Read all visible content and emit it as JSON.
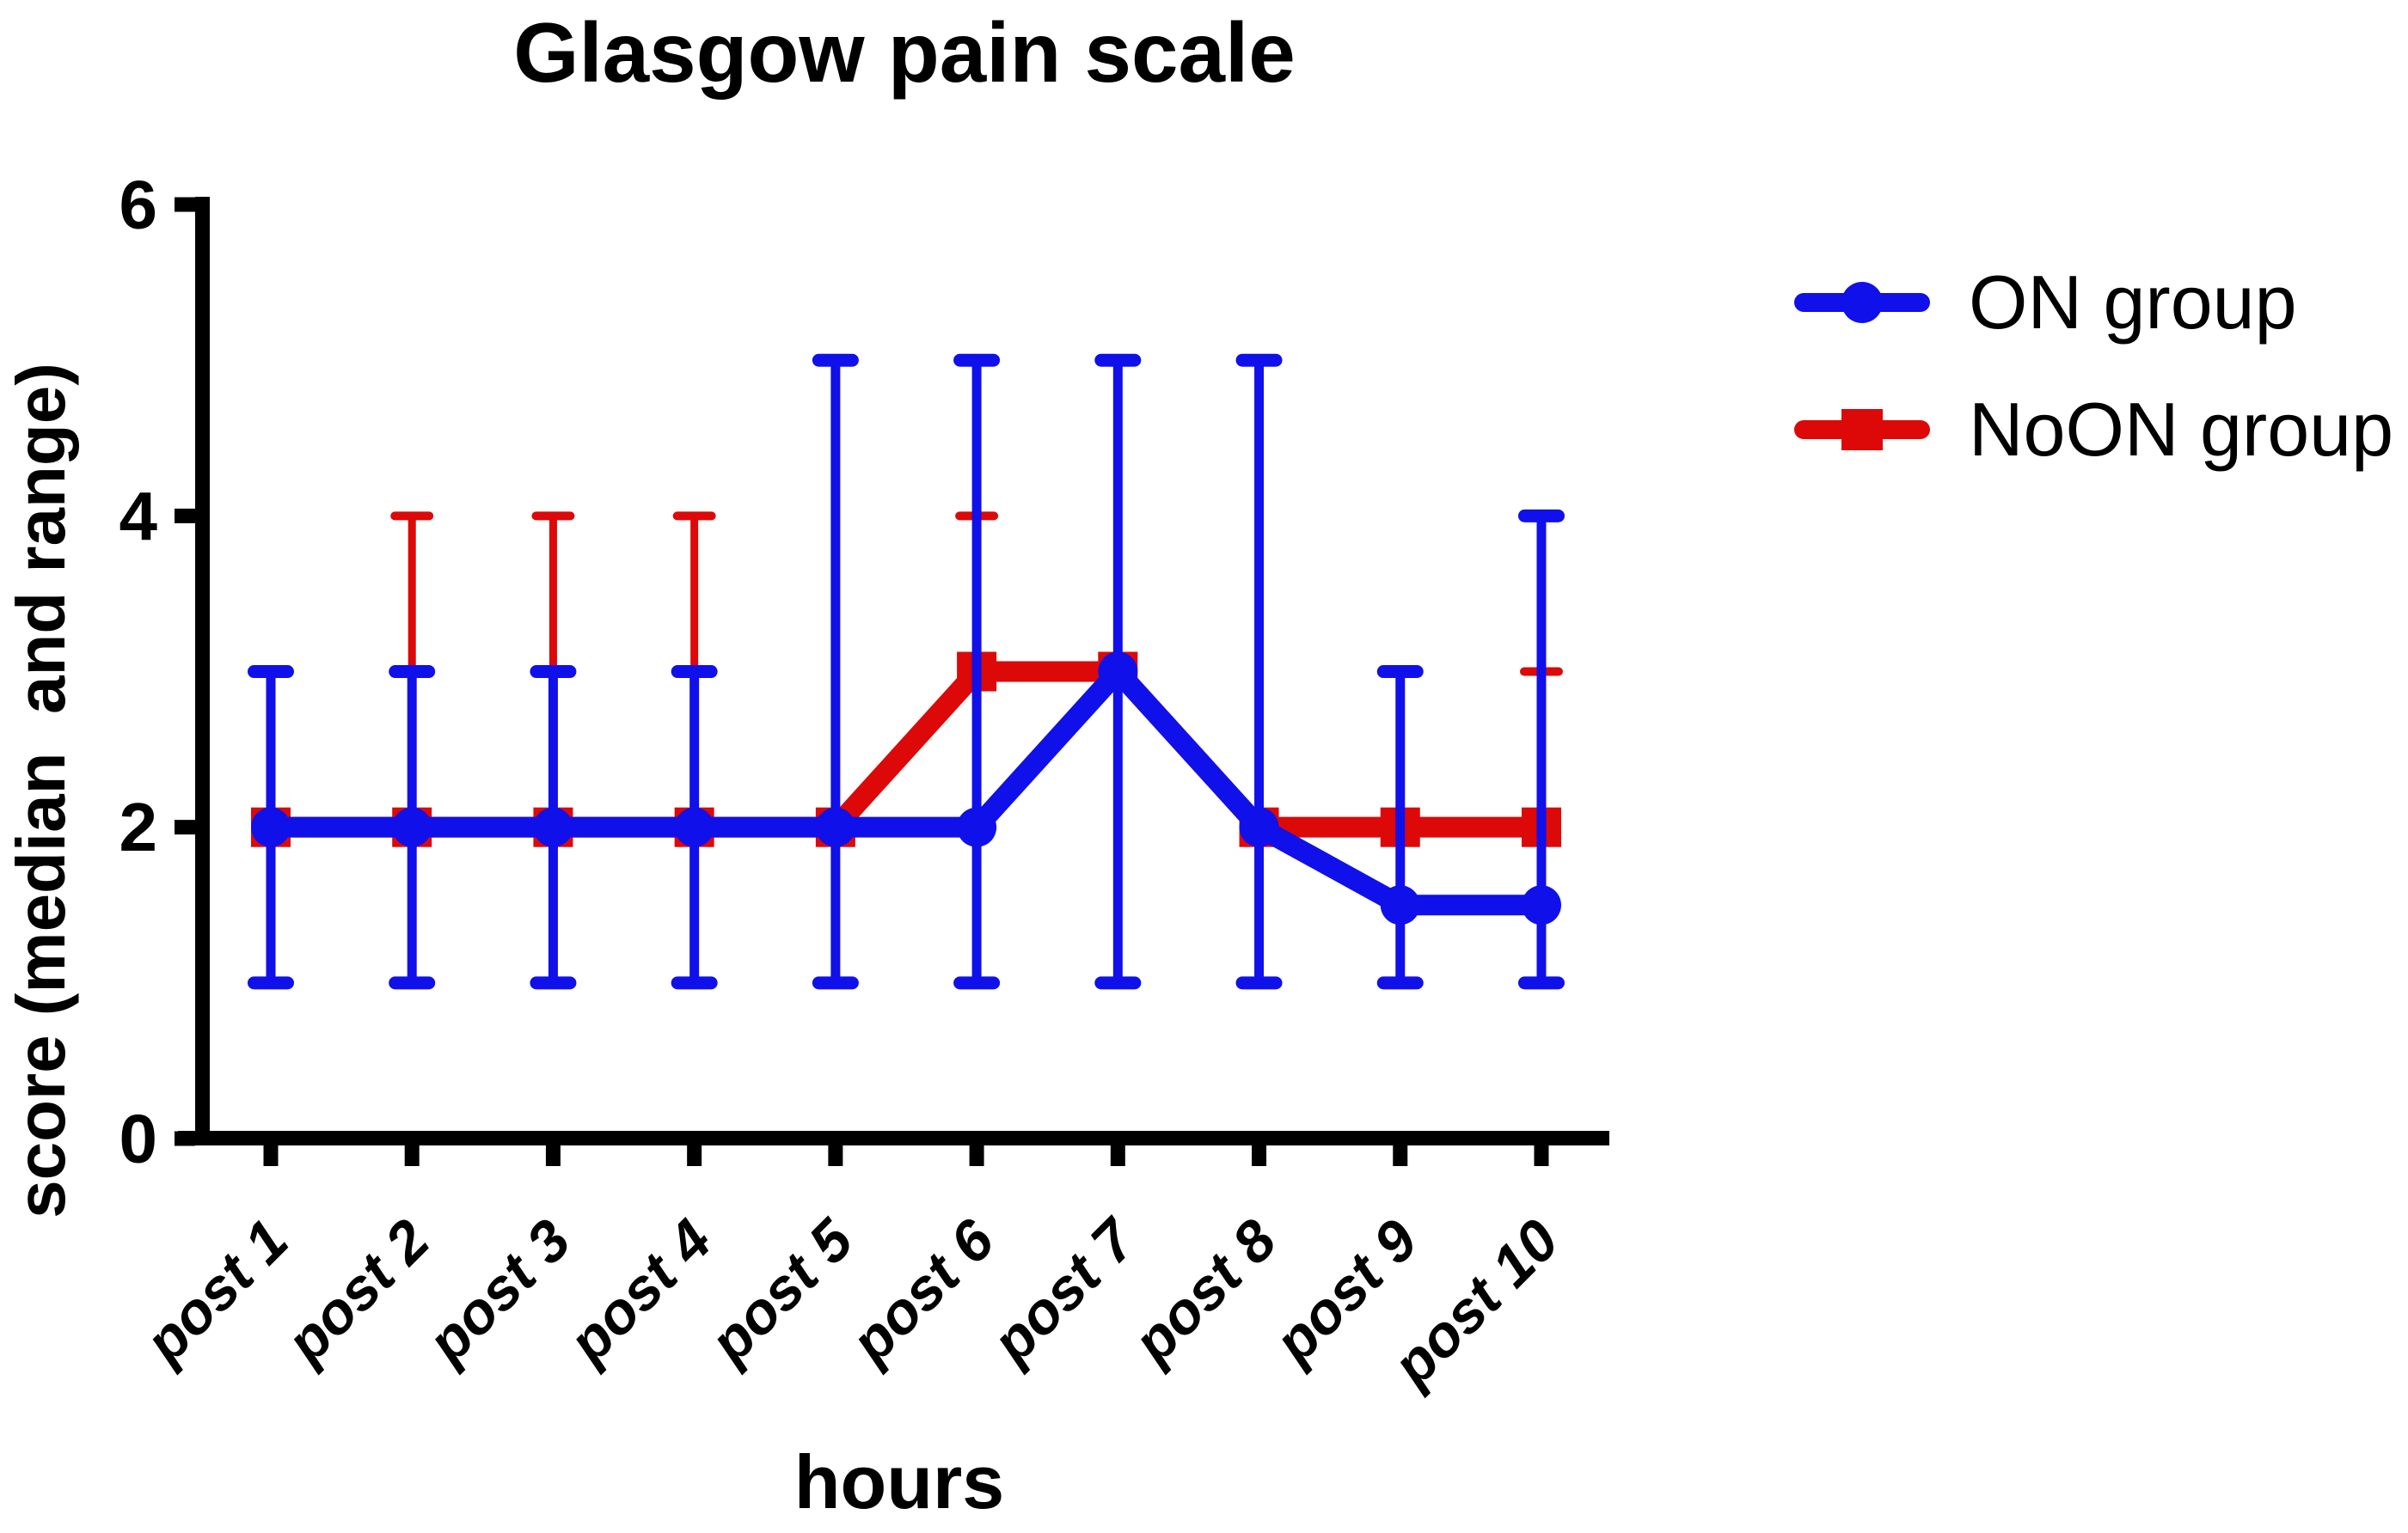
{
  "title": "Glasgow pain scale",
  "axes": {
    "y": {
      "label": "score (median  and range)",
      "tick_labels": [
        "0",
        "2",
        "4",
        "6"
      ]
    },
    "x": {
      "label": "hours"
    }
  },
  "legend": {
    "position": "right-top",
    "items": [
      {
        "label": "ON group",
        "color": "#1010EB",
        "marker": "circle"
      },
      {
        "label": "NoON group",
        "color": "#DD0808",
        "marker": "square"
      }
    ]
  },
  "colors": {
    "axis": "#000000",
    "background": "#ffffff"
  },
  "chart_data": {
    "type": "line",
    "title": "Glasgow pain scale",
    "xlabel": "hours",
    "ylabel": "score (median and range)",
    "ylim": [
      0,
      6
    ],
    "yticks": [
      0,
      2,
      4,
      6
    ],
    "grid": false,
    "legend_position": "right-top",
    "categories": [
      "post 1",
      "post 2",
      "post 3",
      "post 4",
      "post 5",
      "post 6",
      "post 7",
      "post 8",
      "post 9",
      "post 10"
    ],
    "series": [
      {
        "name": "ON group",
        "color": "#1010EB",
        "marker": "circle",
        "median": [
          2,
          2,
          2,
          2,
          2,
          2,
          3,
          2,
          1.5,
          1.5
        ],
        "range_low": [
          1,
          1,
          1,
          1,
          1,
          1,
          1,
          1,
          1,
          1
        ],
        "range_high": [
          3,
          3,
          3,
          3,
          5,
          5,
          5,
          5,
          3,
          4
        ]
      },
      {
        "name": "NoON group",
        "color": "#DD0808",
        "marker": "square",
        "median": [
          2,
          2,
          2,
          2,
          2,
          3,
          3,
          2,
          2,
          2
        ],
        "range_low": [
          null,
          null,
          null,
          null,
          null,
          null,
          null,
          null,
          null,
          null
        ],
        "range_high": [
          null,
          4,
          4,
          4,
          null,
          4,
          null,
          null,
          null,
          3
        ]
      }
    ]
  }
}
